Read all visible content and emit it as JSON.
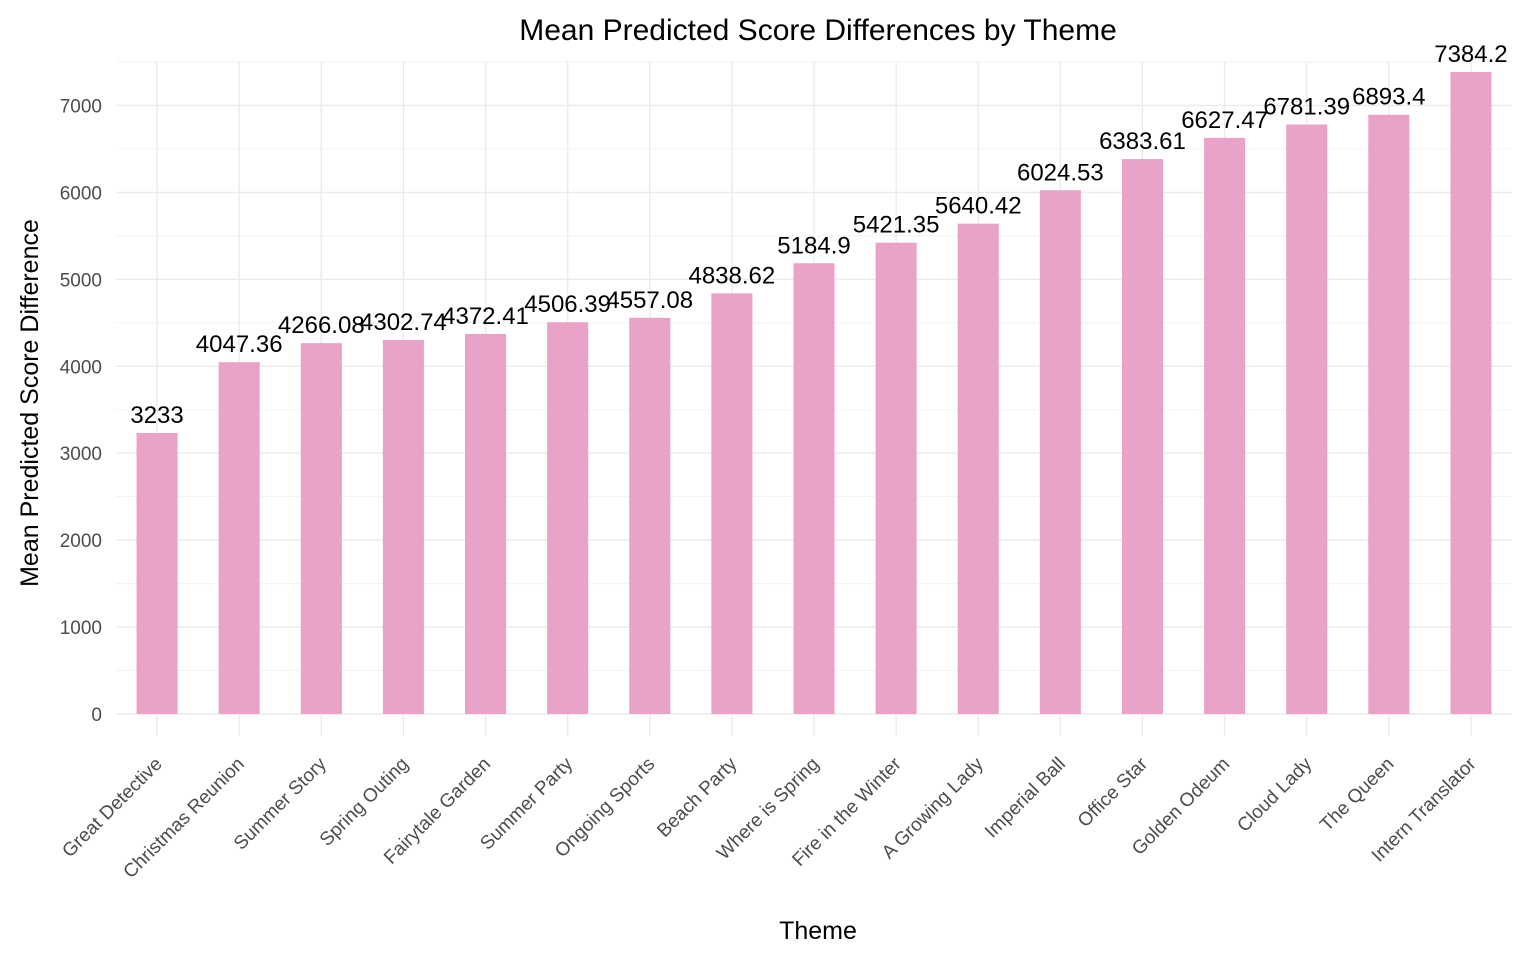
{
  "chart_data": {
    "type": "bar",
    "title": "Mean Predicted Score Differences by Theme",
    "xlabel": "Theme",
    "ylabel": "Mean Predicted Score Difference",
    "ylim": [
      0,
      7500
    ],
    "yticks": [
      0,
      1000,
      2000,
      3000,
      4000,
      5000,
      6000,
      7000
    ],
    "grid": true,
    "legend": "none",
    "bar_color": "#e9a3c9",
    "categories": [
      "Great Detective",
      "Christmas Reunion",
      "Summer Story",
      "Spring Outing",
      "Fairytale Garden",
      "Summer Party",
      "Ongoing Sports",
      "Beach Party",
      "Where is Spring",
      "Fire in the Winter",
      "A Growing Lady",
      "Imperial Ball",
      "Office Star",
      "Golden Odeum",
      "Cloud Lady",
      "The Queen",
      "Intern Translator"
    ],
    "values": [
      3233,
      4047.36,
      4266.08,
      4302.74,
      4372.41,
      4506.39,
      4557.08,
      4838.62,
      5184.9,
      5421.35,
      5640.42,
      6024.53,
      6383.61,
      6627.47,
      6781.39,
      6893.4,
      7384.2
    ],
    "value_labels": [
      "3233",
      "4047.36",
      "4266.08",
      "4302.74",
      "4372.41",
      "4506.39",
      "4557.08",
      "4838.62",
      "5184.9",
      "5421.35",
      "5640.42",
      "6024.53",
      "6383.61",
      "6627.47",
      "6781.39",
      "6893.4",
      "7384.2"
    ]
  }
}
